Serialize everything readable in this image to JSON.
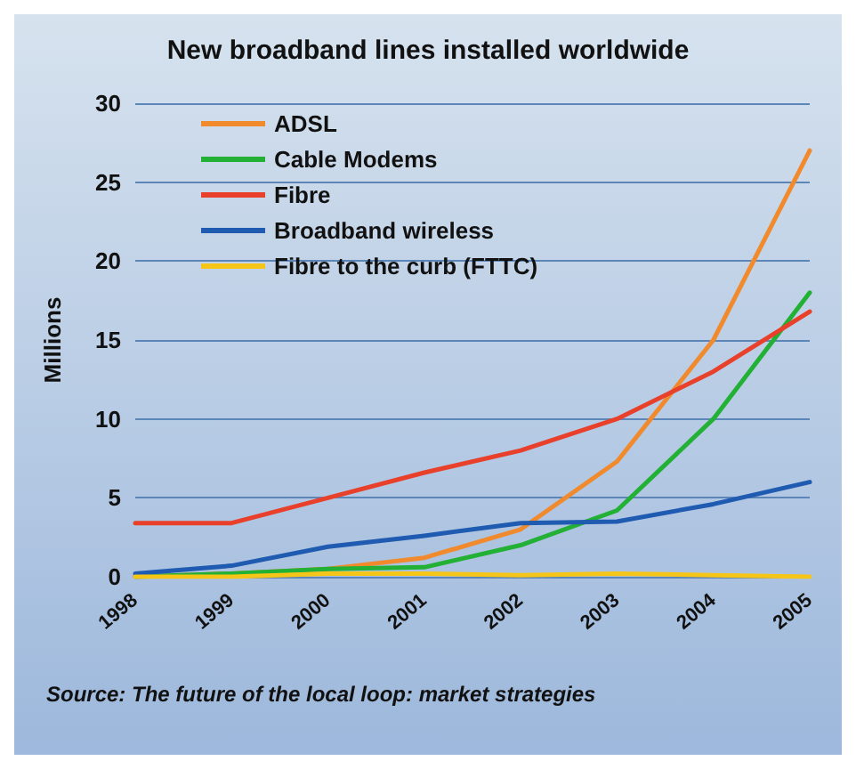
{
  "chart_data": {
    "type": "line",
    "title": "New broadband lines installed worldwide",
    "ylabel": "Millions",
    "categories": [
      "1998",
      "1999",
      "2000",
      "2001",
      "2002",
      "2003",
      "2004",
      "2005"
    ],
    "series": [
      {
        "name": "ADSL",
        "color": "#f08a2c",
        "values": [
          0,
          0.2,
          0.5,
          1.2,
          3,
          7.3,
          15,
          27
        ]
      },
      {
        "name": "Cable Modems",
        "color": "#22b035",
        "values": [
          0,
          0.2,
          0.5,
          0.6,
          2,
          4.2,
          10,
          18
        ]
      },
      {
        "name": "Fibre",
        "color": "#e8402a",
        "values": [
          3.4,
          3.4,
          5,
          6.6,
          8,
          10,
          13,
          16.8
        ]
      },
      {
        "name": "Broadband wireless",
        "color": "#1f5bb0",
        "values": [
          0.2,
          0.7,
          1.9,
          2.6,
          3.4,
          3.5,
          4.6,
          6
        ]
      },
      {
        "name": "Fibre to the curb (FTTC)",
        "color": "#f5c518",
        "values": [
          0,
          0,
          0.2,
          0.2,
          0.1,
          0.2,
          0.1,
          0
        ]
      }
    ],
    "ylim": [
      0,
      30
    ],
    "yticks": [
      0,
      5,
      10,
      15,
      20,
      25,
      30
    ],
    "grid": "y",
    "legend": "top left",
    "marker": "none",
    "line_style": "solid",
    "annotations": [
      "Source: The future of the local loop: market strategies"
    ]
  }
}
